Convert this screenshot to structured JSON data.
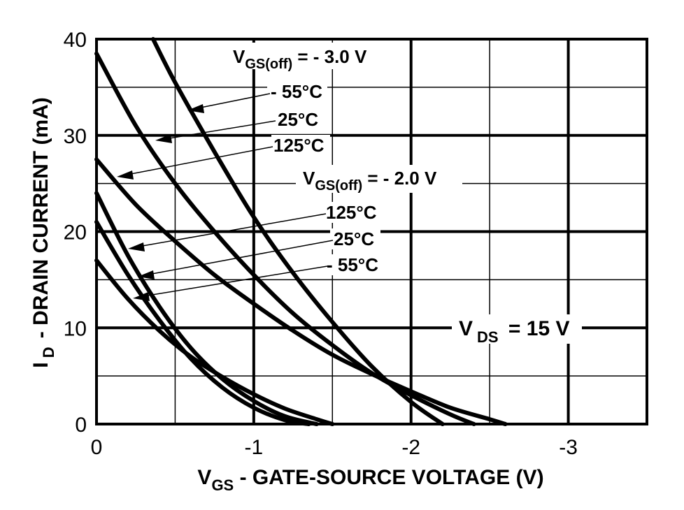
{
  "chart_data": {
    "type": "line",
    "x_axis": {
      "label_main": "V",
      "label_sub": "GS",
      "label_rest": " - GATE-SOURCE VOLTAGE (V)",
      "range": [
        0,
        -3.5
      ],
      "ticks": [
        0,
        -1,
        -2,
        -3
      ],
      "tick_labels": [
        "0",
        "-1",
        "-2",
        "-3"
      ],
      "minor_gridlines": [
        -0.5,
        -1.5,
        -2.5,
        -3.5
      ]
    },
    "y_axis": {
      "label_main": "I",
      "label_sub": "D",
      "label_rest": " - DRAIN CURRENT (mA)",
      "range": [
        0,
        40
      ],
      "ticks": [
        0,
        10,
        20,
        30,
        40
      ],
      "tick_labels": [
        "0",
        "10",
        "20",
        "30",
        "40"
      ],
      "minor_gridlines": [
        5,
        15,
        25,
        35
      ]
    },
    "grid": true,
    "annotations": {
      "group1_main": "V",
      "group1_sub": "GS(off)",
      "group1_rest": " = - 3.0 V",
      "group2_main": "V",
      "group2_sub": "GS(off)",
      "group2_rest": " = - 2.0 V",
      "vds_main": "V",
      "vds_sub": "DS",
      "vds_rest": " = 15 V",
      "g1_minus55": "- 55°C",
      "g1_25": "25°C",
      "g1_125": "125°C",
      "g2_125": "125°C",
      "g2_25": "25°C",
      "g2_minus55": "- 55°C"
    },
    "series": [
      {
        "group": "VGS(off) = -3.0 V",
        "temp": "-55°C",
        "x": [
          -0.36,
          -0.5,
          -0.75,
          -1.0,
          -1.25,
          -1.5,
          -1.75,
          -2.0,
          -2.2
        ],
        "y": [
          40,
          35.5,
          28.3,
          21.5,
          15.7,
          10.6,
          6.0,
          2.3,
          0
        ]
      },
      {
        "group": "VGS(off) = -3.0 V",
        "temp": "25°C",
        "x": [
          0,
          -0.25,
          -0.5,
          -0.75,
          -1.0,
          -1.25,
          -1.5,
          -1.75,
          -2.0,
          -2.25,
          -2.4
        ],
        "y": [
          38.5,
          31,
          25,
          20,
          15.5,
          11.5,
          8.2,
          5.3,
          3.0,
          1.0,
          0
        ]
      },
      {
        "group": "VGS(off) = -3.0 V",
        "temp": "125°C",
        "x": [
          0,
          -0.25,
          -0.5,
          -0.75,
          -1.0,
          -1.25,
          -1.5,
          -1.75,
          -2.0,
          -2.25,
          -2.5,
          -2.6
        ],
        "y": [
          27.5,
          22.8,
          19.0,
          15.5,
          12.5,
          9.7,
          7.2,
          5.2,
          3.4,
          1.7,
          0.5,
          0
        ]
      },
      {
        "group": "VGS(off) = -2.0 V",
        "temp": "-55°C",
        "x": [
          0,
          -0.2,
          -0.4,
          -0.6,
          -0.8,
          -1.0,
          -1.2,
          -1.35
        ],
        "y": [
          21,
          15.5,
          10.8,
          6.8,
          3.8,
          1.7,
          0.4,
          0
        ]
      },
      {
        "group": "VGS(off) = -2.0 V",
        "temp": "25°C",
        "x": [
          0,
          -0.2,
          -0.4,
          -0.6,
          -0.8,
          -1.0,
          -1.2,
          -1.4
        ],
        "y": [
          24,
          17.5,
          12.2,
          7.9,
          4.7,
          2.4,
          0.8,
          0
        ]
      },
      {
        "group": "VGS(off) = -2.0 V",
        "temp": "125°C",
        "x": [
          0,
          -0.2,
          -0.4,
          -0.6,
          -0.8,
          -1.0,
          -1.2,
          -1.4,
          -1.5
        ],
        "y": [
          17,
          13.0,
          9.7,
          7.0,
          4.9,
          3.1,
          1.6,
          0.5,
          0
        ]
      }
    ]
  }
}
